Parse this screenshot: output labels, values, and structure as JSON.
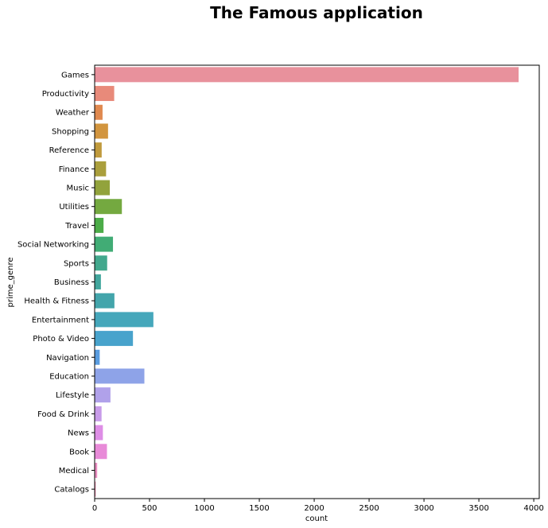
{
  "chart_data": {
    "type": "bar",
    "orientation": "horizontal",
    "title": "The Famous application",
    "xlabel": "count",
    "ylabel": "prime_genre",
    "xlim": [
      0,
      4050
    ],
    "xticks": [
      0,
      500,
      1000,
      1500,
      2000,
      2500,
      3000,
      3500,
      4000
    ],
    "grid": false,
    "categories": [
      "Games",
      "Productivity",
      "Weather",
      "Shopping",
      "Reference",
      "Finance",
      "Music",
      "Utilities",
      "Travel",
      "Social Networking",
      "Sports",
      "Business",
      "Health & Fitness",
      "Entertainment",
      "Photo & Video",
      "Navigation",
      "Education",
      "Lifestyle",
      "Food & Drink",
      "News",
      "Book",
      "Medical",
      "Catalogs"
    ],
    "values": [
      3862,
      178,
      72,
      122,
      64,
      104,
      138,
      248,
      81,
      167,
      114,
      57,
      180,
      535,
      349,
      46,
      453,
      144,
      63,
      75,
      112,
      23,
      10
    ],
    "colors": [
      "#e8919c",
      "#e88a7a",
      "#e0894f",
      "#d2953e",
      "#c09a3c",
      "#aa9f3c",
      "#92a33c",
      "#74a940",
      "#4cac48",
      "#41ac75",
      "#42a88d",
      "#42a69d",
      "#43a5ab",
      "#45a7bb",
      "#48a3cc",
      "#5a9de0",
      "#8ea3e8",
      "#b0a1ea",
      "#c89be9",
      "#de8ee6",
      "#e88ad8",
      "#e88cbf",
      "#e88cab"
    ]
  }
}
